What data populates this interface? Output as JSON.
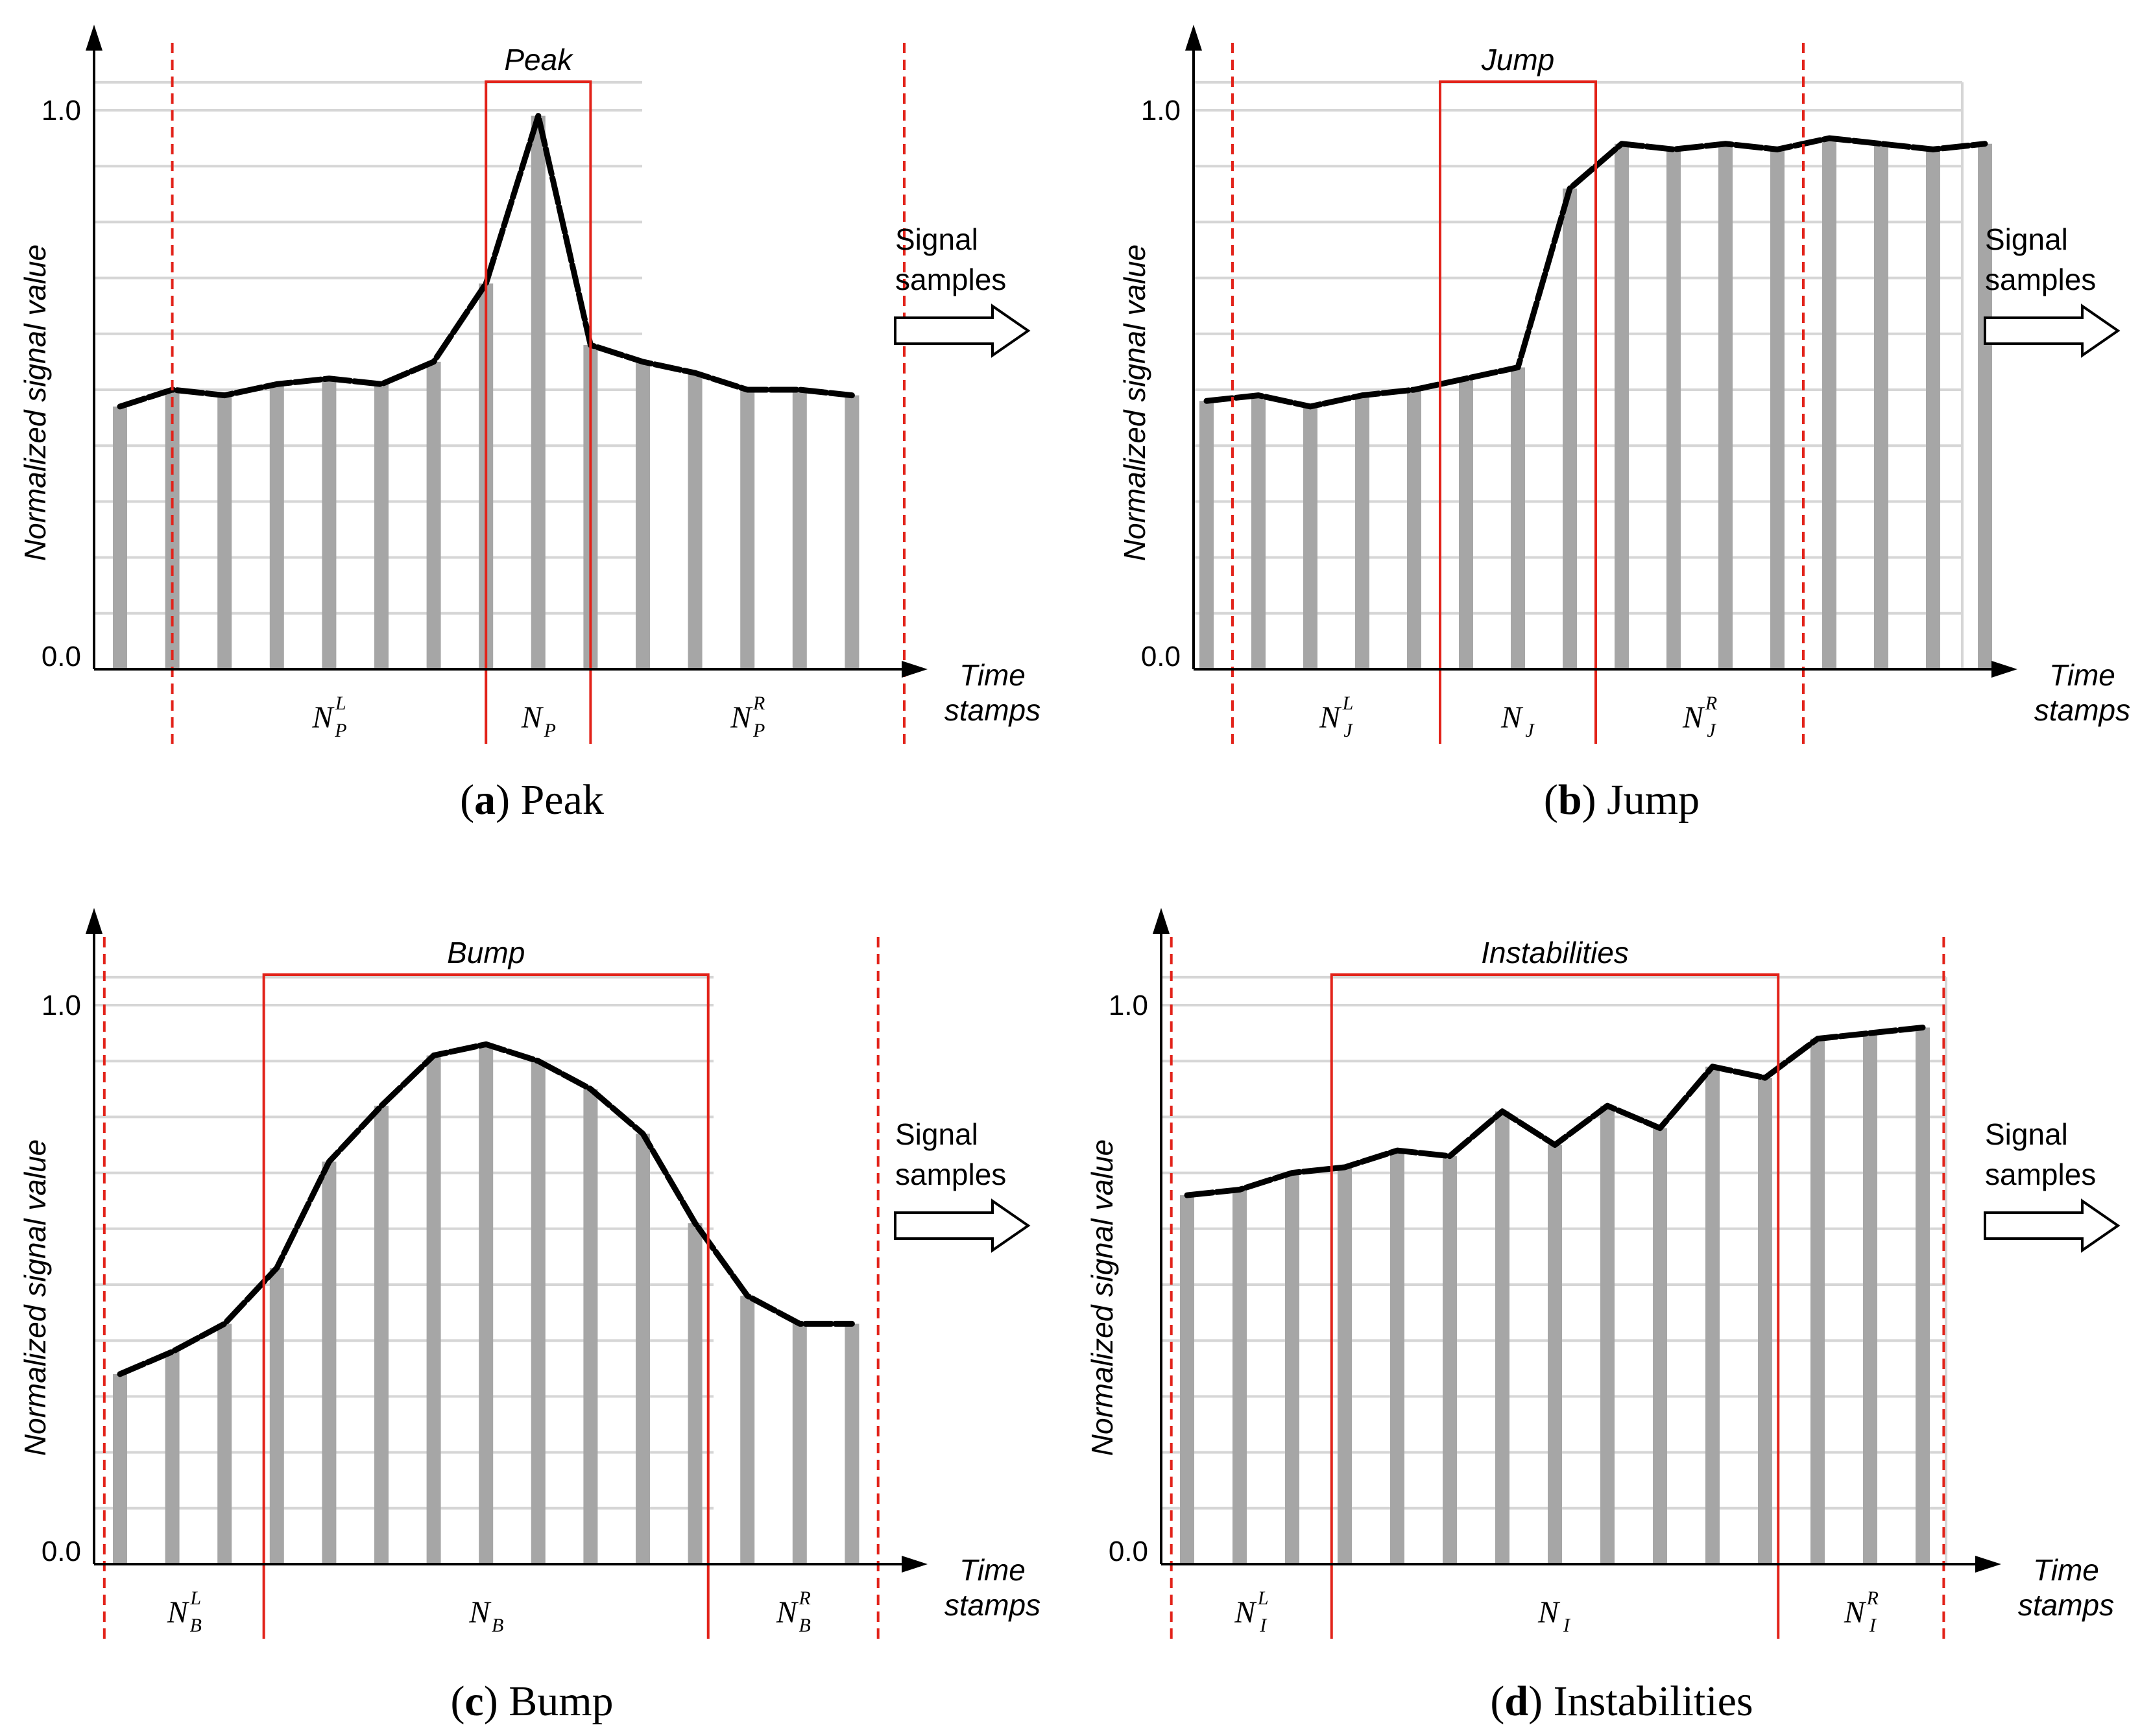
{
  "chart_data": [
    {
      "panel_id": "a",
      "type": "bar",
      "series": [
        {
          "values": [
            0.47,
            0.5,
            0.49,
            0.51,
            0.52,
            0.51,
            0.55,
            0.69,
            0.99,
            0.58,
            0.55,
            0.53,
            0.5,
            0.5,
            0.49
          ]
        }
      ],
      "overlay_line": true,
      "ylim": [
        0,
        1
      ],
      "ytick_labels": [
        "0.0",
        "1.0"
      ],
      "ylabel": "Normalized signal value",
      "xlabel": "Time stamps",
      "grid": true,
      "grid_extent": "left-half",
      "event_label": "Peak",
      "event_span": [
        7,
        9
      ],
      "boundary_span": [
        1,
        15
      ],
      "regions": [
        {
          "label": "N",
          "sub": "P",
          "sup": "L"
        },
        {
          "label": "N",
          "sub": "P",
          "sup": ""
        },
        {
          "label": "N",
          "sub": "P",
          "sup": "R"
        }
      ],
      "flow_label": [
        "Signal",
        "samples"
      ],
      "caption": {
        "letter": "a",
        "text": "Peak"
      }
    },
    {
      "panel_id": "b",
      "type": "bar",
      "series": [
        {
          "values": [
            0.48,
            0.49,
            0.47,
            0.49,
            0.5,
            0.52,
            0.54,
            0.86,
            0.94,
            0.93,
            0.94,
            0.93,
            0.95,
            0.94,
            0.93,
            0.94
          ]
        }
      ],
      "overlay_line": true,
      "ylim": [
        0,
        1
      ],
      "ytick_labels": [
        "0.0",
        "1.0"
      ],
      "ylabel": "Normalized signal value",
      "xlabel": "Time stamps",
      "grid": true,
      "grid_extent": "full",
      "event_label": "Jump",
      "event_span": [
        4.5,
        7.5
      ],
      "boundary_span": [
        0.5,
        11.5
      ],
      "regions": [
        {
          "label": "N",
          "sub": "J",
          "sup": "L"
        },
        {
          "label": "N",
          "sub": "J",
          "sup": ""
        },
        {
          "label": "N",
          "sub": "J",
          "sup": "R"
        }
      ],
      "flow_label": [
        "Signal",
        "samples"
      ],
      "caption": {
        "letter": "b",
        "text": "Jump"
      }
    },
    {
      "panel_id": "c",
      "type": "bar",
      "series": [
        {
          "values": [
            0.34,
            0.38,
            0.43,
            0.53,
            0.72,
            0.82,
            0.91,
            0.93,
            0.9,
            0.85,
            0.77,
            0.61,
            0.48,
            0.43,
            0.43
          ]
        }
      ],
      "overlay_line": true,
      "ylim": [
        0,
        1
      ],
      "ytick_labels": [
        "0.0",
        "1.0"
      ],
      "ylabel": "Normalized signal value",
      "xlabel": "Time stamps",
      "grid": true,
      "grid_extent": "left-half",
      "event_label": "Bump",
      "event_span": [
        2.75,
        11.25
      ],
      "boundary_span": [
        -0.3,
        14.5
      ],
      "regions": [
        {
          "label": "N",
          "sub": "B",
          "sup": "L"
        },
        {
          "label": "N",
          "sub": "B",
          "sup": ""
        },
        {
          "label": "N",
          "sub": "B",
          "sup": "R"
        }
      ],
      "flow_label": [
        "Signal",
        "samples"
      ],
      "caption": {
        "letter": "c",
        "text": "Bump"
      }
    },
    {
      "panel_id": "d",
      "type": "bar",
      "series": [
        {
          "values": [
            0.66,
            0.67,
            0.7,
            0.71,
            0.74,
            0.73,
            0.81,
            0.75,
            0.82,
            0.78,
            0.89,
            0.87,
            0.94,
            0.95,
            0.96
          ]
        }
      ],
      "overlay_line": true,
      "ylim": [
        0,
        1
      ],
      "ytick_labels": [
        "0.0",
        "1.0"
      ],
      "ylabel": "Normalized signal value",
      "xlabel": "Time stamps",
      "grid": true,
      "grid_extent": "full",
      "event_label": "Instabilities",
      "event_span": [
        2.75,
        11.25
      ],
      "boundary_span": [
        -0.3,
        14.4
      ],
      "regions": [
        {
          "label": "N",
          "sub": "I",
          "sup": "L"
        },
        {
          "label": "N",
          "sub": "I",
          "sup": ""
        },
        {
          "label": "N",
          "sub": "I",
          "sup": "R"
        }
      ],
      "flow_label": [
        "Signal",
        "samples"
      ],
      "caption": {
        "letter": "d",
        "text": "Instabilities"
      }
    }
  ],
  "colors": {
    "bar": "#a6a6a6",
    "line": "#000000",
    "event_box": "#e2231a",
    "boundary": "#e2231a",
    "grid": "#d6d6d6",
    "axis": "#000000"
  }
}
